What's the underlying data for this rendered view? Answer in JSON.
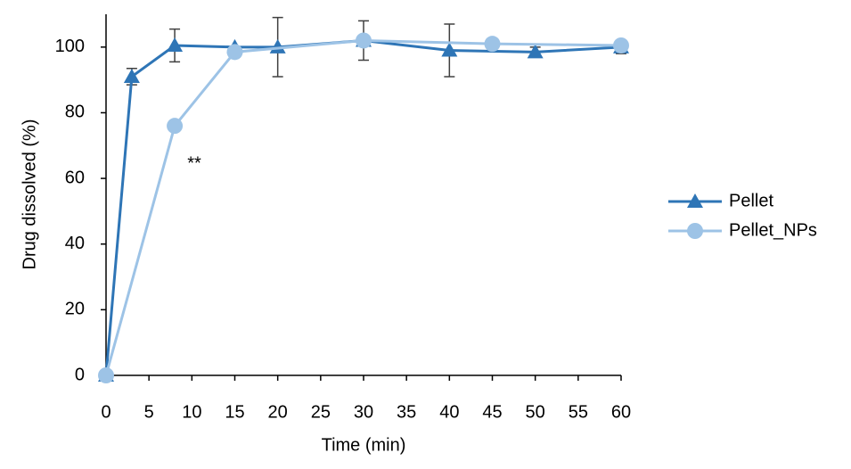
{
  "chart_data": {
    "type": "line",
    "x_label": "Time (min)",
    "y_label": "Drug dissolved (%)",
    "xlim": [
      0,
      60
    ],
    "xticks": [
      0,
      5,
      10,
      15,
      20,
      25,
      30,
      35,
      40,
      45,
      50,
      55,
      60
    ],
    "ylim": [
      0,
      110
    ],
    "yticks": [
      0,
      20,
      40,
      60,
      80,
      100
    ],
    "annotation": "**",
    "series": [
      {
        "name": "Pellet",
        "color": "#2e75b6",
        "marker": "triangle",
        "x": [
          0,
          3,
          8,
          15,
          20,
          30,
          40,
          50,
          60
        ],
        "values": [
          0,
          91,
          100.5,
          100,
          100,
          102,
          99,
          98.5,
          100
        ],
        "errors": [
          null,
          2.5,
          5,
          null,
          9,
          6,
          8,
          1.5,
          2
        ]
      },
      {
        "name": "Pellet_NPs",
        "color": "#9dc3e6",
        "marker": "circle",
        "x": [
          0,
          8,
          15,
          30,
          45,
          60
        ],
        "values": [
          0,
          76,
          98.5,
          102,
          101,
          100.5
        ]
      }
    ]
  }
}
